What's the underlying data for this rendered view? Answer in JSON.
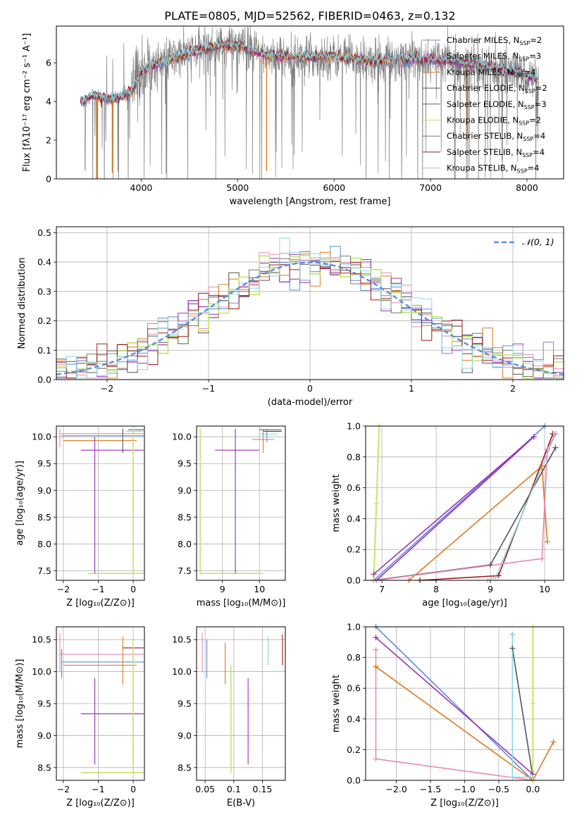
{
  "figure": {
    "title": "PLATE=0805, MJD=52562, FIBERID=0463, z=0.132",
    "colors": {
      "chabrier_miles": "#5b8de0",
      "salpeter_miles": "#e989b8",
      "kroupa_miles": "#e07a1f",
      "chabrier_elodie": "#555555",
      "salpeter_elodie": "#9b30b5",
      "kroupa_elodie": "#c7e773",
      "chabrier_stelib": "#777777",
      "salpeter_stelib": "#a01a1a",
      "kroupa_stelib": "#8ed8e0",
      "data_spectrum": "#808080",
      "normal_curve": "#5b8de0"
    }
  },
  "chart_data": [
    {
      "id": "spectrum",
      "type": "line",
      "title": "PLATE=0805, MJD=52562, FIBERID=0463, z=0.132",
      "xlabel": "wavelength [Angstrom, rest frame]",
      "ylabel": "Flux [fλ10⁻¹⁷ erg cm⁻² s⁻¹ A⁻¹]",
      "xlim": [
        3120,
        8380
      ],
      "ylim": [
        0,
        7.9
      ],
      "xticks": [
        4000,
        5000,
        6000,
        7000,
        8000
      ],
      "yticks": [
        0,
        2,
        4,
        6
      ],
      "grid": false,
      "legend": "top-right",
      "continuum": {
        "x": [
          3370,
          3500,
          3700,
          3900,
          4000,
          4200,
          4500,
          4800,
          5000,
          5300,
          5600,
          6000,
          6400,
          6800,
          7200,
          7600,
          7900,
          8100
        ],
        "y": [
          4.0,
          4.3,
          4.1,
          4.5,
          5.6,
          6.0,
          6.5,
          6.9,
          6.9,
          6.4,
          6.3,
          6.3,
          6.1,
          6.2,
          6.1,
          5.8,
          5.5,
          5.1
        ]
      },
      "series": [
        {
          "name": "Chabrier MILES, N_SSP=2"
        },
        {
          "name": "Salpeter MILES, N_SSP=3"
        },
        {
          "name": "Kroupa MILES, N_SSP=4"
        },
        {
          "name": "Chabrier ELODIE, N_SSP=2"
        },
        {
          "name": "Salpeter ELODIE, N_SSP=3"
        },
        {
          "name": "Kroupa ELODIE, N_SSP=2"
        },
        {
          "name": "Chabrier STELIB, N_SSP=4"
        },
        {
          "name": "Salpeter STELIB, N_SSP=4"
        },
        {
          "name": "Kroupa STELIB, N_SSP=4"
        }
      ],
      "legend_entries": [
        {
          "model": "Chabrier MILES, N",
          "sub": "SSP",
          "tail": "=2"
        },
        {
          "model": "Salpeter MILES, N",
          "sub": "SSP",
          "tail": "=3"
        },
        {
          "model": "Kroupa MILES, N",
          "sub": "SSP",
          "tail": "=4"
        },
        {
          "model": "Chabrier ELODIE, N",
          "sub": "SSP",
          "tail": "=2"
        },
        {
          "model": "Salpeter ELODIE, N",
          "sub": "SSP",
          "tail": "=3"
        },
        {
          "model": "Kroupa ELODIE, N",
          "sub": "SSP",
          "tail": "=2"
        },
        {
          "model": "Chabrier STELIB, N",
          "sub": "SSP",
          "tail": "=4"
        },
        {
          "model": "Salpeter STELIB, N",
          "sub": "SSP",
          "tail": "=4"
        },
        {
          "model": "Kroupa STELIB, N",
          "sub": "SSP",
          "tail": "=4"
        }
      ]
    },
    {
      "id": "residuals",
      "type": "bar",
      "xlabel": "(data-model)/error",
      "ylabel": "Normed distribution",
      "xlim": [
        -2.5,
        2.5
      ],
      "ylim": [
        0,
        0.52
      ],
      "xticks": [
        -2,
        -1,
        0,
        1,
        2
      ],
      "yticks": [
        0.0,
        0.1,
        0.2,
        0.3,
        0.4,
        0.5
      ],
      "grid": true,
      "legend": "top-right",
      "legend_label": "𝒩(0, 1)",
      "bin_width": 0.1,
      "normal": {
        "mean": 0,
        "sigma": 1
      }
    },
    {
      "id": "age-vs-Z",
      "type": "scatter",
      "xlabel": "Z [log₁₀(Z/Z⊙)]",
      "ylabel": "age  [log₁₀(age/yr)]",
      "xlim": [
        -2.2,
        0.32
      ],
      "ylim": [
        7.32,
        10.2
      ],
      "xticks": [
        -2,
        -1,
        0
      ],
      "yticks": [
        7.5,
        8.0,
        8.5,
        9.0,
        9.5,
        10.0
      ],
      "grid": true,
      "crosses": [
        {
          "color": "chabrier_miles",
          "x": [
            -2.05,
            0.3
          ],
          "y": [
            10.02,
            10.02
          ]
        },
        {
          "color": "salpeter_miles",
          "x": [
            -2.1,
            0.3
          ],
          "y": [
            10.06,
            10.06
          ]
        },
        {
          "color": "kroupa_miles",
          "x": [
            -2.0,
            0.1
          ],
          "y": [
            9.93,
            9.93
          ]
        },
        {
          "color": "chabrier_elodie",
          "x": [
            -0.15,
            0.3
          ],
          "y": [
            10.13,
            10.13
          ]
        },
        {
          "color": "salpeter_elodie",
          "x": [
            -1.5,
            0.3
          ],
          "y": [
            9.75,
            9.75
          ]
        },
        {
          "color": "kroupa_elodie",
          "x": [
            -1.3,
            0.3
          ],
          "y": [
            7.45,
            7.45
          ]
        },
        {
          "color": "kroupa_stelib",
          "x": [
            -0.2,
            0.3
          ],
          "y": [
            10.1,
            10.1
          ]
        }
      ],
      "vlines": [
        {
          "color": "salpeter_miles",
          "x": -2.1,
          "y": [
            9.8,
            10.15
          ]
        },
        {
          "color": "salpeter_elodie",
          "x": -1.1,
          "y": [
            7.45,
            10.0
          ]
        },
        {
          "color": "kroupa_elodie",
          "x": 0.0,
          "y": [
            7.45,
            10.15
          ]
        },
        {
          "color": "chabrier_elodie",
          "x": -0.3,
          "y": [
            9.7,
            10.15
          ]
        }
      ]
    },
    {
      "id": "age-vs-mass",
      "type": "scatter",
      "xlabel": "mass [log₁₀(M/M⊙)]",
      "xlim": [
        8.3,
        10.7
      ],
      "ylim": [
        7.32,
        10.2
      ],
      "xticks": [
        9,
        10
      ],
      "yticks": [
        7.5,
        8.0,
        8.5,
        9.0,
        9.5,
        10.0
      ],
      "grid": true,
      "crosses": [
        {
          "color": "kroupa_elodie",
          "x": [
            8.4,
            10.1
          ],
          "y": [
            7.45,
            7.45
          ]
        },
        {
          "color": "salpeter_elodie",
          "x": [
            8.8,
            10.0
          ],
          "y": [
            9.75,
            9.75
          ]
        },
        {
          "color": "chabrier_elodie",
          "x": [
            10.0,
            10.6
          ],
          "y": [
            10.13,
            10.13
          ]
        },
        {
          "color": "salpeter_stelib",
          "x": [
            10.1,
            10.6
          ],
          "y": [
            10.1,
            10.1
          ]
        },
        {
          "color": "kroupa_miles",
          "x": [
            9.8,
            10.4
          ],
          "y": [
            9.95,
            9.95
          ]
        },
        {
          "color": "kroupa_stelib",
          "x": [
            10.0,
            10.5
          ],
          "y": [
            10.05,
            10.05
          ]
        }
      ],
      "vlines": [
        {
          "color": "kroupa_elodie",
          "x": 8.4,
          "y": [
            7.45,
            10.15
          ]
        },
        {
          "color": "salpeter_elodie",
          "x": 9.35,
          "y": [
            7.45,
            10.15
          ]
        },
        {
          "color": "kroupa_miles",
          "x": 10.1,
          "y": [
            9.7,
            10.15
          ]
        },
        {
          "color": "chabrier_miles",
          "x": 10.2,
          "y": [
            9.9,
            10.15
          ]
        }
      ]
    },
    {
      "id": "massweight-vs-age",
      "type": "line",
      "xlabel": "age  [log₁₀(age/yr)]",
      "ylabel": "mass weight",
      "xlim": [
        6.7,
        10.35
      ],
      "ylim": [
        0,
        1.0
      ],
      "xticks": [
        7,
        8,
        9,
        10
      ],
      "yticks": [
        0.0,
        0.2,
        0.4,
        0.6,
        0.8,
        1.0
      ],
      "grid": true,
      "series": [
        {
          "color": "chabrier_miles",
          "x": [
            6.85,
            10.0
          ],
          "y": [
            0.0,
            1.0
          ]
        },
        {
          "color": "salpeter_elodie",
          "x": [
            6.85,
            9.8,
            6.9
          ],
          "y": [
            0.04,
            0.93,
            0.0
          ]
        },
        {
          "color": "kroupa_miles",
          "x": [
            7.5,
            9.95,
            10.05
          ],
          "y": [
            0.0,
            0.74,
            0.25
          ]
        },
        {
          "color": "chabrier_elodie",
          "x": [
            6.85,
            9.0,
            10.2
          ],
          "y": [
            0.0,
            0.1,
            0.86
          ]
        },
        {
          "color": "salpeter_stelib",
          "x": [
            7.7,
            9.15,
            10.15
          ],
          "y": [
            0.0,
            0.03,
            0.95
          ]
        },
        {
          "color": "kroupa_stelib",
          "x": [
            8.95,
            9.1,
            10.2
          ],
          "y": [
            0.0,
            0.02,
            0.95
          ]
        },
        {
          "color": "salpeter_miles",
          "x": [
            6.9,
            9.95,
            10.05,
            10.2
          ],
          "y": [
            0.0,
            0.14,
            0.85,
            0.95
          ]
        },
        {
          "color": "kroupa_elodie",
          "x": [
            6.85,
            6.9,
            6.95
          ],
          "y": [
            0.0,
            0.5,
            1.0
          ]
        }
      ]
    },
    {
      "id": "mass-vs-Z",
      "type": "scatter",
      "xlabel": "Z [log₁₀(Z/Z⊙)]",
      "ylabel": "mass [log₁₀(M/M⊙)]",
      "xlim": [
        -2.2,
        0.32
      ],
      "ylim": [
        8.3,
        10.7
      ],
      "xticks": [
        -2,
        -1,
        0
      ],
      "yticks": [
        8.5,
        9.0,
        9.5,
        10.0,
        10.5
      ],
      "grid": true,
      "crosses": [
        {
          "color": "salpeter_miles",
          "x": [
            -2.1,
            0.3
          ],
          "y": [
            10.27,
            10.27
          ]
        },
        {
          "color": "chabrier_miles",
          "x": [
            -2.05,
            0.3
          ],
          "y": [
            10.15,
            10.15
          ]
        },
        {
          "color": "kroupa_miles",
          "x": [
            -2.0,
            0.1
          ],
          "y": [
            10.1,
            10.1
          ]
        },
        {
          "color": "salpeter_stelib",
          "x": [
            -0.3,
            0.3
          ],
          "y": [
            10.37,
            10.37
          ]
        },
        {
          "color": "salpeter_elodie",
          "x": [
            -1.5,
            0.3
          ],
          "y": [
            9.34,
            9.34
          ]
        },
        {
          "color": "kroupa_elodie",
          "x": [
            -1.5,
            0.3
          ],
          "y": [
            8.42,
            8.42
          ]
        }
      ],
      "vlines": [
        {
          "color": "salpeter_miles",
          "x": -2.1,
          "y": [
            10.0,
            10.6
          ]
        },
        {
          "color": "chabrier_miles",
          "x": -2.05,
          "y": [
            9.9,
            10.35
          ]
        },
        {
          "color": "salpeter_elodie",
          "x": -1.1,
          "y": [
            8.55,
            9.9
          ]
        },
        {
          "color": "kroupa_elodie",
          "x": 0.0,
          "y": [
            8.42,
            10.5
          ]
        },
        {
          "color": "kroupa_miles",
          "x": -0.3,
          "y": [
            9.8,
            10.55
          ]
        }
      ]
    },
    {
      "id": "mass-vs-EBV",
      "type": "scatter",
      "xlabel": "E(B-V)",
      "xlim": [
        0.035,
        0.19
      ],
      "ylim": [
        8.3,
        10.7
      ],
      "xticks": [
        0.05,
        0.1,
        0.15
      ],
      "yticks": [
        8.5,
        9.0,
        9.5,
        10.0,
        10.5
      ],
      "grid": true,
      "vlines": [
        {
          "color": "salpeter_miles",
          "x": 0.045,
          "y": [
            10.0,
            10.6
          ]
        },
        {
          "color": "chabrier_miles",
          "x": 0.053,
          "y": [
            9.9,
            10.5
          ]
        },
        {
          "color": "kroupa_miles",
          "x": 0.085,
          "y": [
            9.8,
            10.45
          ]
        },
        {
          "color": "kroupa_elodie",
          "x": 0.095,
          "y": [
            8.42,
            10.1
          ]
        },
        {
          "color": "salpeter_elodie",
          "x": 0.125,
          "y": [
            8.55,
            9.9
          ]
        },
        {
          "color": "kroupa_stelib",
          "x": 0.16,
          "y": [
            10.1,
            10.55
          ]
        },
        {
          "color": "salpeter_stelib",
          "x": 0.185,
          "y": [
            10.1,
            10.58
          ]
        }
      ]
    },
    {
      "id": "massweight-vs-Z",
      "type": "line",
      "xlabel": "Z [log₁₀(Z/Z⊙)]",
      "ylabel": "mass weight",
      "xlim": [
        -2.45,
        0.45
      ],
      "ylim": [
        0,
        1.0
      ],
      "xticks": [
        -2.0,
        -1.5,
        -1.0,
        -0.5,
        0.0
      ],
      "yticks": [
        0.0,
        0.2,
        0.4,
        0.6,
        0.8,
        1.0
      ],
      "grid": true,
      "series": [
        {
          "color": "chabrier_miles",
          "x": [
            -2.3,
            0.0
          ],
          "y": [
            1.0,
            0.0
          ]
        },
        {
          "color": "salpeter_elodie",
          "x": [
            -2.3,
            0.0
          ],
          "y": [
            0.93,
            0.04
          ]
        },
        {
          "color": "kroupa_miles",
          "x": [
            -2.3,
            0.0,
            0.3
          ],
          "y": [
            0.74,
            0.0,
            0.25
          ]
        },
        {
          "color": "salpeter_miles",
          "x": [
            -2.3,
            -2.3,
            0.0
          ],
          "y": [
            0.85,
            0.14,
            0.0
          ]
        },
        {
          "color": "chabrier_elodie",
          "x": [
            -0.3,
            -0.3,
            0.0
          ],
          "y": [
            0.95,
            0.86,
            0.02
          ]
        },
        {
          "color": "kroupa_stelib",
          "x": [
            -0.3,
            -0.3,
            0.0
          ],
          "y": [
            0.95,
            0.02,
            0.02
          ]
        },
        {
          "color": "kroupa_elodie",
          "x": [
            0.0,
            0.0,
            0.0
          ],
          "y": [
            1.0,
            0.5,
            0.0
          ]
        }
      ]
    }
  ]
}
